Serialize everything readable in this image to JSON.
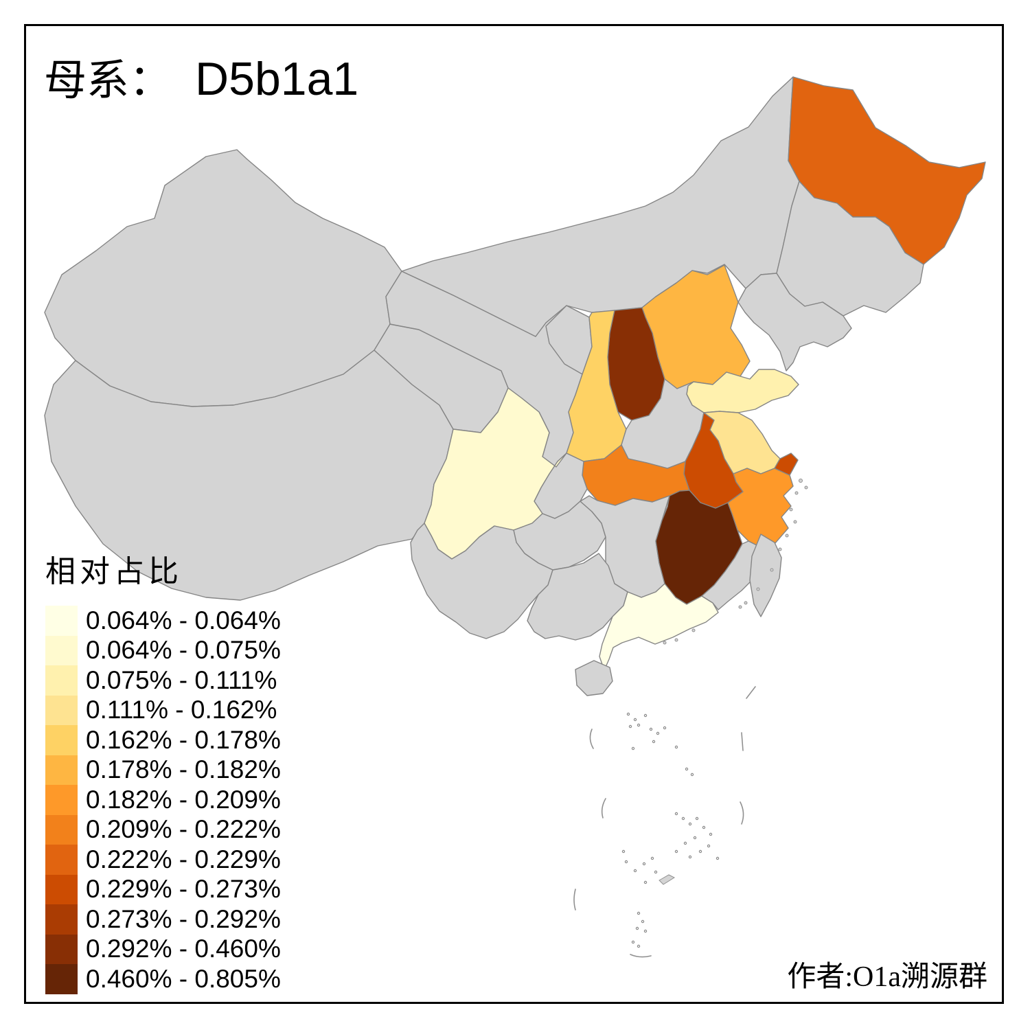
{
  "title": {
    "prefix": "母系：",
    "haplogroup": "D5b1a1"
  },
  "legend": {
    "title": "相对占比",
    "entries": [
      {
        "range": "0.064% - 0.064%",
        "color": "#FFFFE5"
      },
      {
        "range": "0.064% - 0.075%",
        "color": "#FFFACF"
      },
      {
        "range": "0.075% - 0.111%",
        "color": "#FFF1AE"
      },
      {
        "range": "0.111% - 0.162%",
        "color": "#FEE391"
      },
      {
        "range": "0.162% - 0.178%",
        "color": "#FED264"
      },
      {
        "range": "0.178% - 0.182%",
        "color": "#FEB642"
      },
      {
        "range": "0.182% - 0.209%",
        "color": "#FE9929"
      },
      {
        "range": "0.209% - 0.222%",
        "color": "#F2811B"
      },
      {
        "range": "0.222% - 0.229%",
        "color": "#E16410"
      },
      {
        "range": "0.229% - 0.273%",
        "color": "#CC4C02"
      },
      {
        "range": "0.273% - 0.292%",
        "color": "#AA3C03"
      },
      {
        "range": "0.292% - 0.460%",
        "color": "#882F05"
      },
      {
        "range": "0.460% - 0.805%",
        "color": "#662506"
      }
    ]
  },
  "attribution": "作者:O1a溯源群",
  "map": {
    "no_data_color": "#D4D4D4",
    "border_color": "#858585",
    "provinces": [
      {
        "id": "xinjiang",
        "name": "Xinjiang",
        "level": null
      },
      {
        "id": "tibet",
        "name": "Tibet",
        "level": null
      },
      {
        "id": "qinghai",
        "name": "Qinghai",
        "level": null
      },
      {
        "id": "gansu",
        "name": "Gansu",
        "level": null
      },
      {
        "id": "inner-mongolia",
        "name": "Inner Mongolia",
        "level": null
      },
      {
        "id": "ningxia",
        "name": "Ningxia",
        "level": null
      },
      {
        "id": "heilongjiang",
        "name": "Heilongjiang",
        "level": 9
      },
      {
        "id": "jilin",
        "name": "Jilin",
        "level": null
      },
      {
        "id": "liaoning",
        "name": "Liaoning",
        "level": null
      },
      {
        "id": "hebei",
        "name": "Hebei",
        "level": 6
      },
      {
        "id": "beijing",
        "name": "Beijing",
        "level": 3
      },
      {
        "id": "tianjin",
        "name": "Tianjin",
        "level": 11
      },
      {
        "id": "shanxi",
        "name": "Shanxi",
        "level": 12
      },
      {
        "id": "shaanxi",
        "name": "Shaanxi",
        "level": 5
      },
      {
        "id": "shandong",
        "name": "Shandong",
        "level": 3
      },
      {
        "id": "henan",
        "name": "Henan",
        "level": null
      },
      {
        "id": "jiangsu",
        "name": "Jiangsu",
        "level": 4
      },
      {
        "id": "anhui",
        "name": "Anhui",
        "level": 10
      },
      {
        "id": "hubei",
        "name": "Hubei",
        "level": 8
      },
      {
        "id": "chongqing",
        "name": "Chongqing",
        "level": null
      },
      {
        "id": "sichuan",
        "name": "Sichuan",
        "level": 2
      },
      {
        "id": "guizhou",
        "name": "Guizhou",
        "level": null
      },
      {
        "id": "yunnan",
        "name": "Yunnan",
        "level": null
      },
      {
        "id": "hunan",
        "name": "Hunan",
        "level": null
      },
      {
        "id": "jiangxi",
        "name": "Jiangxi",
        "level": 13
      },
      {
        "id": "zhejiang",
        "name": "Zhejiang",
        "level": 7
      },
      {
        "id": "shanghai",
        "name": "Shanghai",
        "level": 10
      },
      {
        "id": "guangxi",
        "name": "Guangxi",
        "level": null
      },
      {
        "id": "guangdong",
        "name": "Guangdong",
        "level": 1
      },
      {
        "id": "fujian",
        "name": "Fujian",
        "level": null
      },
      {
        "id": "hainan",
        "name": "Hainan",
        "level": null
      },
      {
        "id": "taiwan",
        "name": "Taiwan",
        "level": null
      }
    ]
  },
  "chart_data": {
    "type": "choropleth",
    "title": "母系： D5b1a1",
    "legend_title": "相对占比",
    "region": "China provinces",
    "bins": [
      "0.064% - 0.064%",
      "0.064% - 0.075%",
      "0.075% - 0.111%",
      "0.111% - 0.162%",
      "0.162% - 0.178%",
      "0.178% - 0.182%",
      "0.182% - 0.209%",
      "0.209% - 0.222%",
      "0.222% - 0.229%",
      "0.229% - 0.273%",
      "0.273% - 0.292%",
      "0.292% - 0.460%",
      "0.460% - 0.805%"
    ],
    "values": [
      {
        "province": "Guangdong",
        "range": "0.064% - 0.064%"
      },
      {
        "province": "Sichuan",
        "range": "0.064% - 0.075%"
      },
      {
        "province": "Beijing",
        "range": "0.075% - 0.111%"
      },
      {
        "province": "Shandong",
        "range": "0.075% - 0.111%"
      },
      {
        "province": "Jiangsu",
        "range": "0.111% - 0.162%"
      },
      {
        "province": "Shaanxi",
        "range": "0.162% - 0.178%"
      },
      {
        "province": "Hebei",
        "range": "0.178% - 0.182%"
      },
      {
        "province": "Zhejiang",
        "range": "0.182% - 0.209%"
      },
      {
        "province": "Hubei",
        "range": "0.209% - 0.222%"
      },
      {
        "province": "Heilongjiang",
        "range": "0.222% - 0.229%"
      },
      {
        "province": "Anhui",
        "range": "0.229% - 0.273%"
      },
      {
        "province": "Shanghai",
        "range": "0.229% - 0.273%"
      },
      {
        "province": "Tianjin",
        "range": "0.273% - 0.292%"
      },
      {
        "province": "Shanxi",
        "range": "0.292% - 0.460%"
      },
      {
        "province": "Jiangxi",
        "range": "0.460% - 0.805%"
      }
    ],
    "no_data_provinces": [
      "Xinjiang",
      "Tibet",
      "Qinghai",
      "Gansu",
      "Inner Mongolia",
      "Ningxia",
      "Jilin",
      "Liaoning",
      "Henan",
      "Chongqing",
      "Guizhou",
      "Yunnan",
      "Hunan",
      "Guangxi",
      "Hainan",
      "Fujian",
      "Taiwan"
    ]
  }
}
